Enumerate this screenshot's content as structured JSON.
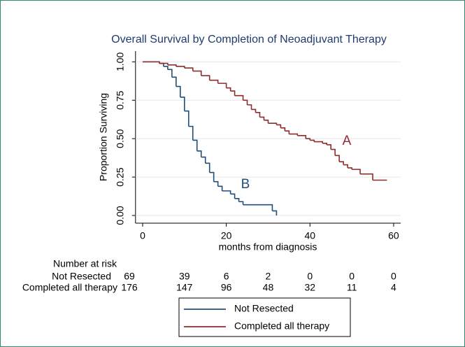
{
  "chart_data": {
    "type": "step",
    "title": "Overall Survival by Completion of Neoadjuvant Therapy",
    "x_label": "months from diagnosis",
    "y_label": "Proportion Surviving",
    "xlim": [
      -1.7,
      61.7
    ],
    "ylim": [
      -0.05,
      1.07
    ],
    "xticks": [
      0,
      20,
      40,
      60
    ],
    "yticks": [
      {
        "value": 0,
        "label": "0.00"
      },
      {
        "value": 0.25,
        "label": "0.25"
      },
      {
        "value": 0.5,
        "label": "0.50"
      },
      {
        "value": 0.75,
        "label": "0.75"
      },
      {
        "value": 1,
        "label": "1.00"
      }
    ],
    "grid": true,
    "series": [
      {
        "name": "Not Resected",
        "color": "#1f4e79",
        "x": [
          0,
          4,
          5,
          6,
          7,
          8,
          9,
          10,
          11,
          12,
          13,
          14,
          15,
          16,
          17,
          18,
          19,
          21,
          22,
          23,
          24,
          31,
          32
        ],
        "values": [
          1.0,
          0.99,
          0.97,
          0.95,
          0.9,
          0.84,
          0.77,
          0.68,
          0.58,
          0.49,
          0.42,
          0.38,
          0.34,
          0.28,
          0.22,
          0.19,
          0.16,
          0.14,
          0.11,
          0.09,
          0.07,
          0.03,
          0.0
        ]
      },
      {
        "name": "Completed all therapy",
        "color": "#8c2d2d",
        "x": [
          0,
          4,
          6,
          8,
          10,
          12,
          14,
          16,
          18,
          20,
          21,
          22,
          24,
          25,
          26,
          27,
          28,
          29,
          30,
          32,
          33,
          34,
          35,
          37,
          39,
          40,
          41,
          43,
          44,
          45,
          46,
          47,
          48,
          49,
          50,
          52,
          55,
          58.4
        ],
        "values": [
          1.0,
          0.99,
          0.98,
          0.97,
          0.96,
          0.94,
          0.91,
          0.88,
          0.86,
          0.83,
          0.81,
          0.78,
          0.75,
          0.72,
          0.69,
          0.67,
          0.64,
          0.62,
          0.6,
          0.59,
          0.57,
          0.55,
          0.53,
          0.52,
          0.5,
          0.49,
          0.48,
          0.47,
          0.46,
          0.43,
          0.39,
          0.35,
          0.33,
          0.31,
          0.3,
          0.27,
          0.23,
          0.23
        ]
      }
    ],
    "annotations": [
      "A",
      "B"
    ],
    "risk_table": {
      "title": "Number at risk",
      "rows": [
        {
          "label": "Not Resected",
          "counts": [
            69,
            39,
            6,
            2,
            0,
            0,
            0
          ]
        },
        {
          "label": "Completed all therapy",
          "counts": [
            176,
            147,
            96,
            48,
            32,
            11,
            4
          ]
        }
      ]
    }
  }
}
